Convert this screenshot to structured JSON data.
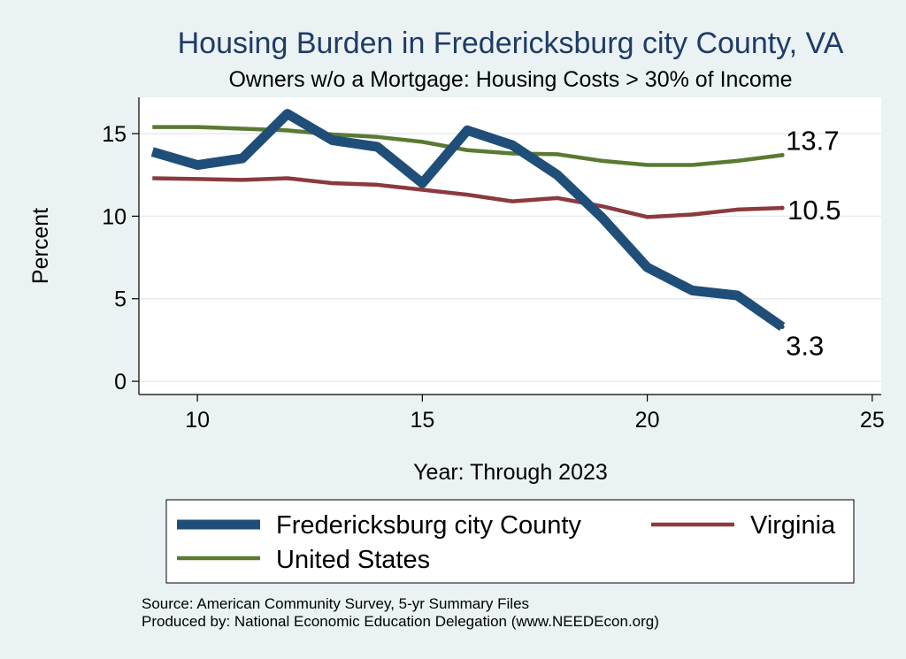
{
  "chart_data": {
    "type": "line",
    "title": "Housing Burden in Fredericksburg city County, VA",
    "subtitle": "Owners w/o a Mortgage: Housing Costs > 30% of Income",
    "xlabel": "Year: Through 2023",
    "ylabel": "Percent",
    "xlim": [
      8.7,
      25.2
    ],
    "ylim": [
      -0.8,
      17.2
    ],
    "xticks": [
      10,
      15,
      20,
      25
    ],
    "yticks": [
      0,
      5,
      10,
      15
    ],
    "grid": true,
    "legend_position": "bottom",
    "x": [
      9,
      10,
      11,
      12,
      13,
      14,
      15,
      16,
      17,
      18,
      19,
      20,
      21,
      22,
      23
    ],
    "series": [
      {
        "name": "Fredericksburg city County",
        "color": "#1f4e79",
        "values": [
          13.9,
          13.1,
          13.5,
          16.2,
          14.6,
          14.2,
          12.0,
          15.2,
          14.3,
          12.5,
          9.9,
          6.9,
          5.5,
          5.2,
          3.3
        ],
        "end_label": "3.3"
      },
      {
        "name": "Virginia",
        "color": "#8b3a3e",
        "values": [
          12.3,
          12.25,
          12.2,
          12.3,
          12.0,
          11.9,
          11.6,
          11.3,
          10.9,
          11.1,
          10.6,
          9.95,
          10.1,
          10.4,
          10.5
        ],
        "end_label": "10.5"
      },
      {
        "name": "United States",
        "color": "#5a7a31",
        "values": [
          15.4,
          15.4,
          15.3,
          15.2,
          14.95,
          14.8,
          14.5,
          14.0,
          13.8,
          13.75,
          13.35,
          13.1,
          13.1,
          13.35,
          13.7
        ],
        "end_label": "13.7"
      }
    ],
    "source_lines": [
      "Source: American Community Survey, 5-yr Summary Files",
      "Produced by: National Economic Education Delegation (www.NEEDEcon.org)"
    ]
  }
}
